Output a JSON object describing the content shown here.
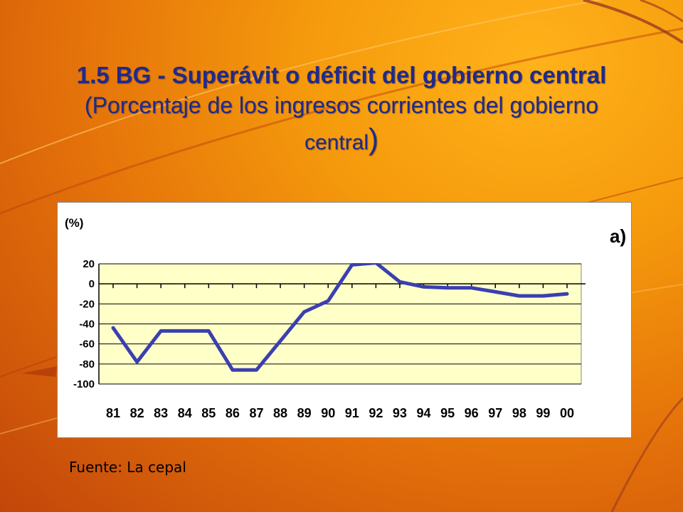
{
  "slide": {
    "title_bold": "1.5 BG - Superávit o déficit del gobierno central",
    "title_sub": "(Porcentaje de los ingresos corrientes del gobierno",
    "title_sub2": "central",
    "title_close": ")",
    "source": "Fuente: La cepal"
  },
  "chart_data": {
    "type": "line",
    "unit_label": "(%)",
    "panel_label": "a)",
    "categories": [
      "81",
      "82",
      "83",
      "84",
      "85",
      "86",
      "87",
      "88",
      "89",
      "90",
      "91",
      "92",
      "93",
      "94",
      "95",
      "96",
      "97",
      "98",
      "99",
      "00"
    ],
    "series": [
      {
        "values": [
          -44,
          -78,
          -47,
          -47,
          -47,
          -86,
          -86,
          -57,
          -28,
          -17,
          19,
          21,
          2,
          -3,
          -4,
          -4,
          -8,
          -12,
          -12,
          -10
        ],
        "color": "#3b3fb0"
      }
    ],
    "yticks": [
      20,
      0,
      -20,
      -40,
      -60,
      -80,
      -100
    ],
    "ylim": [
      -100,
      20
    ],
    "grid": true,
    "plot_background": "#ffffc8"
  }
}
